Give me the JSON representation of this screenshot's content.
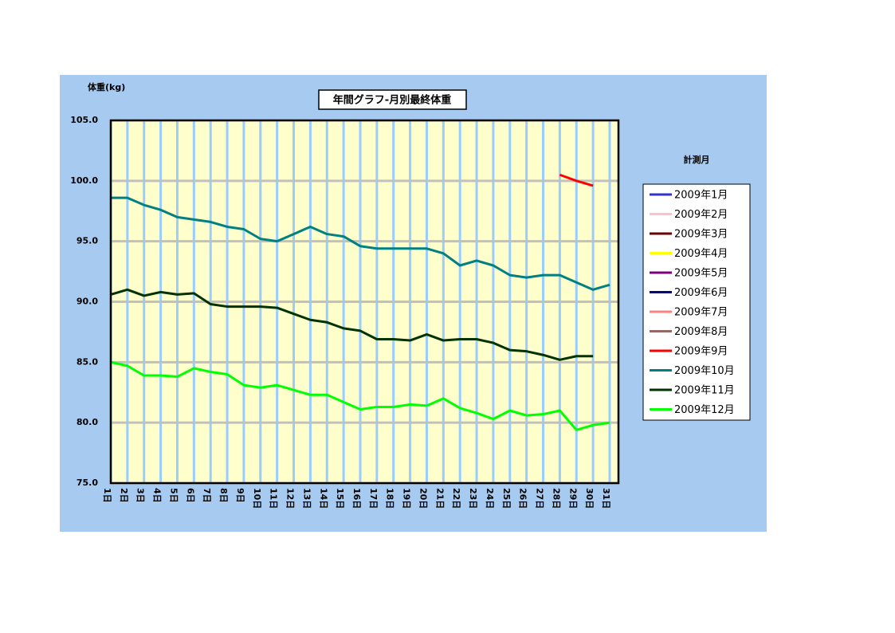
{
  "chart_data": {
    "type": "line",
    "title": "年間グラフ-月別最終体重",
    "y_label": "体重(kg)",
    "legend_title": "計測月",
    "categories": [
      "1日",
      "2日",
      "3日",
      "4日",
      "5日",
      "6日",
      "7日",
      "8日",
      "9日",
      "10日",
      "11日",
      "12日",
      "13日",
      "14日",
      "15日",
      "16日",
      "17日",
      "18日",
      "19日",
      "20日",
      "21日",
      "22日",
      "23日",
      "24日",
      "25日",
      "26日",
      "27日",
      "28日",
      "29日",
      "30日",
      "31日"
    ],
    "ylim": [
      75,
      105
    ],
    "yticks": [
      {
        "value": 75,
        "label": "75.0"
      },
      {
        "value": 80,
        "label": "80.0"
      },
      {
        "value": 85,
        "label": "85.0"
      },
      {
        "value": 90,
        "label": "90.0"
      },
      {
        "value": 95,
        "label": "95.0"
      },
      {
        "value": 100,
        "label": "100.0"
      },
      {
        "value": 105,
        "label": "105.0"
      }
    ],
    "grid": true,
    "legend": "right",
    "series": [
      {
        "name": "2009年1月",
        "color": "#3333cc",
        "values": [
          null,
          null,
          null,
          null,
          null,
          null,
          null,
          null,
          null,
          null,
          null,
          null,
          null,
          null,
          null,
          null,
          null,
          null,
          null,
          null,
          null,
          null,
          null,
          null,
          null,
          null,
          null,
          null,
          null,
          null,
          null
        ]
      },
      {
        "name": "2009年2月",
        "color": "#ffc0cb",
        "values": [
          null,
          null,
          null,
          null,
          null,
          null,
          null,
          null,
          null,
          null,
          null,
          null,
          null,
          null,
          null,
          null,
          null,
          null,
          null,
          null,
          null,
          null,
          null,
          null,
          null,
          null,
          null,
          null,
          null,
          null,
          null
        ]
      },
      {
        "name": "2009年3月",
        "color": "#660000",
        "values": [
          null,
          null,
          null,
          null,
          null,
          null,
          null,
          null,
          null,
          null,
          null,
          null,
          null,
          null,
          null,
          null,
          null,
          null,
          null,
          null,
          null,
          null,
          null,
          null,
          null,
          null,
          null,
          null,
          null,
          null,
          null
        ]
      },
      {
        "name": "2009年4月",
        "color": "#ffff00",
        "values": [
          null,
          null,
          null,
          null,
          null,
          null,
          null,
          null,
          null,
          null,
          null,
          null,
          null,
          null,
          null,
          null,
          null,
          null,
          null,
          null,
          null,
          null,
          null,
          null,
          null,
          null,
          null,
          null,
          null,
          null,
          null
        ]
      },
      {
        "name": "2009年5月",
        "color": "#800080",
        "values": [
          null,
          null,
          null,
          null,
          null,
          null,
          null,
          null,
          null,
          null,
          null,
          null,
          null,
          null,
          null,
          null,
          null,
          null,
          null,
          null,
          null,
          null,
          null,
          null,
          null,
          null,
          null,
          null,
          null,
          null,
          null
        ]
      },
      {
        "name": "2009年6月",
        "color": "#000080",
        "values": [
          null,
          null,
          null,
          null,
          null,
          null,
          null,
          null,
          null,
          null,
          null,
          null,
          null,
          null,
          null,
          null,
          null,
          null,
          null,
          null,
          null,
          null,
          null,
          null,
          null,
          null,
          null,
          null,
          null,
          null,
          null
        ]
      },
      {
        "name": "2009年7月",
        "color": "#ff8080",
        "values": [
          null,
          null,
          null,
          null,
          null,
          null,
          null,
          null,
          null,
          null,
          null,
          null,
          null,
          null,
          null,
          null,
          null,
          null,
          null,
          null,
          null,
          null,
          null,
          null,
          null,
          null,
          null,
          null,
          null,
          null,
          null
        ]
      },
      {
        "name": "2009年8月",
        "color": "#996666",
        "values": [
          null,
          null,
          null,
          null,
          null,
          null,
          null,
          null,
          null,
          null,
          null,
          null,
          null,
          null,
          null,
          null,
          null,
          null,
          null,
          null,
          null,
          null,
          null,
          null,
          null,
          null,
          null,
          null,
          null,
          null,
          null
        ]
      },
      {
        "name": "2009年9月",
        "color": "#ff0000",
        "values": [
          null,
          null,
          null,
          null,
          null,
          null,
          null,
          null,
          null,
          null,
          null,
          null,
          null,
          null,
          null,
          null,
          null,
          null,
          null,
          null,
          null,
          null,
          null,
          null,
          null,
          null,
          null,
          100.5,
          100.0,
          99.6,
          null
        ]
      },
      {
        "name": "2009年10月",
        "color": "#008080",
        "values": [
          98.6,
          98.6,
          98.0,
          97.6,
          97.0,
          96.8,
          96.6,
          96.2,
          96.0,
          95.2,
          95.0,
          95.6,
          96.2,
          95.6,
          95.4,
          94.6,
          94.4,
          94.4,
          94.4,
          94.4,
          94.0,
          93.0,
          93.4,
          93.0,
          92.2,
          92.0,
          92.2,
          92.2,
          91.6,
          91.0,
          91.4
        ]
      },
      {
        "name": "2009年11月",
        "color": "#003300",
        "values": [
          90.6,
          91.0,
          90.5,
          90.8,
          90.6,
          90.7,
          89.8,
          89.6,
          89.6,
          89.6,
          89.5,
          89.0,
          88.5,
          88.3,
          87.8,
          87.6,
          86.9,
          86.9,
          86.8,
          87.3,
          86.8,
          86.9,
          86.9,
          86.6,
          86.0,
          85.9,
          85.6,
          85.2,
          85.5,
          85.5,
          null
        ]
      },
      {
        "name": "2009年12月",
        "color": "#00ff00",
        "values": [
          85.0,
          84.7,
          83.9,
          83.9,
          83.8,
          84.5,
          84.2,
          84.0,
          83.1,
          82.9,
          83.1,
          82.7,
          82.3,
          82.3,
          81.7,
          81.1,
          81.3,
          81.3,
          81.5,
          81.4,
          82.0,
          81.2,
          80.8,
          80.3,
          81.0,
          80.6,
          80.7,
          81.0,
          79.4,
          79.8,
          80.0
        ]
      }
    ]
  }
}
